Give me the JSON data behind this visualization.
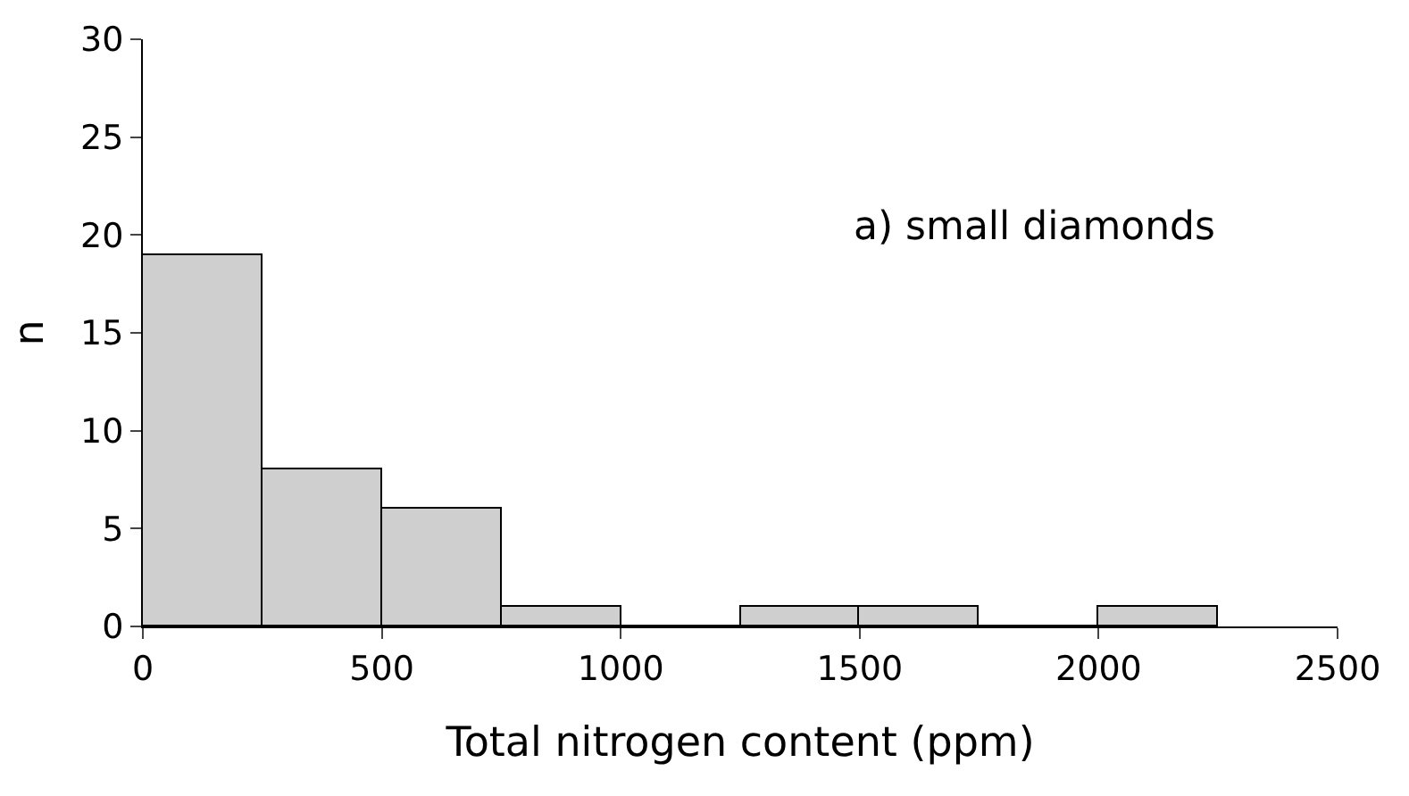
{
  "chart_data": {
    "type": "histogram",
    "xlabel": "Total nitrogen content (ppm)",
    "ylabel": "n",
    "bins": [
      0,
      250,
      500,
      750,
      1000,
      1250,
      1500,
      1750,
      2000,
      2250
    ],
    "values": [
      19,
      8,
      6,
      1,
      0,
      1,
      1,
      0,
      1
    ],
    "color": "#cfcfcf",
    "xlim": [
      0,
      2500
    ],
    "xticks": [
      0,
      500,
      1000,
      1500,
      2000,
      2500
    ],
    "ylim": [
      0,
      30
    ],
    "yticks": [
      0,
      5,
      10,
      15,
      20,
      25,
      30
    ],
    "grid": false,
    "annotations": [
      "a) small diamonds"
    ]
  }
}
